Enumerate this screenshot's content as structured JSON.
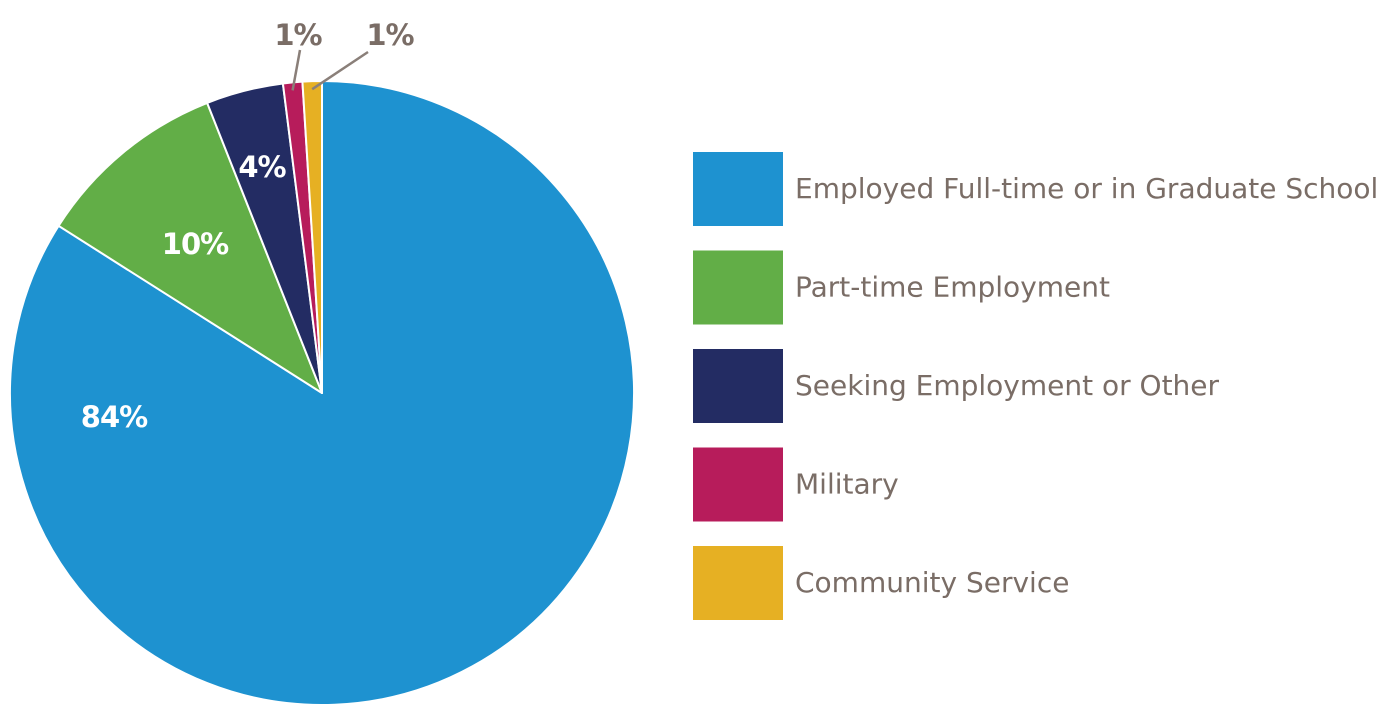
{
  "chart_data": {
    "type": "pie",
    "title": "",
    "legend_placement": "right",
    "start_angle": "top",
    "direction": "clockwise",
    "slices": [
      {
        "name": "Employed Full-time or in Graduate School",
        "value": 84,
        "label": "84%",
        "color": "#1e92d0",
        "label_position": "inside"
      },
      {
        "name": "Part-time Employment",
        "value": 10,
        "label": "10%",
        "color": "#62ae47",
        "label_position": "inside"
      },
      {
        "name": "Seeking Employment or Other",
        "value": 4,
        "label": "4%",
        "color": "#232c63",
        "label_position": "inside"
      },
      {
        "name": "Military",
        "value": 1,
        "label": "1%",
        "color": "#b71c5b",
        "label_position": "outside"
      },
      {
        "name": "Community Service",
        "value": 1,
        "label": "1%",
        "color": "#e6b023",
        "label_position": "outside"
      }
    ]
  }
}
